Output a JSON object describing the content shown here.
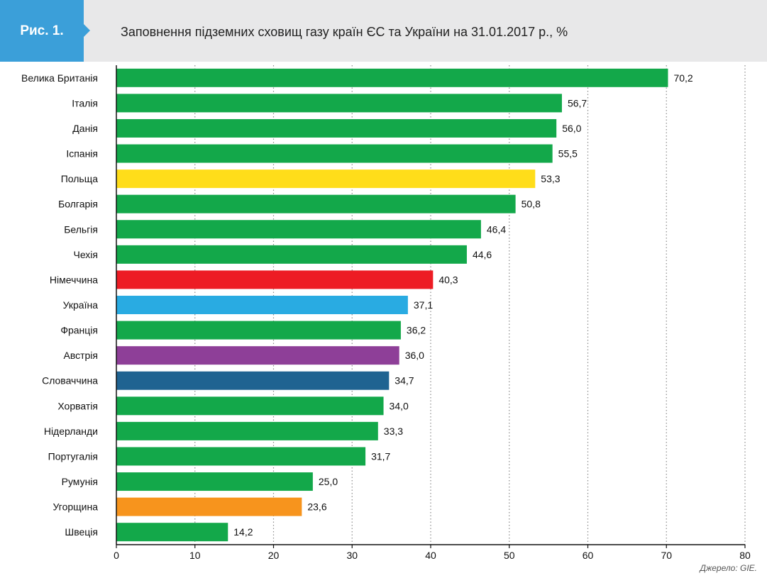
{
  "header": {
    "figure_label": "Рис. 1.",
    "title": "Заповнення підземних сховищ газу країн ЄС та України на 31.01.2017 р., %"
  },
  "source": "Джерело: GIE.",
  "colors": {
    "header_bg": "#e8e8e9",
    "badge": "#3b9fd9",
    "default_bar": "#13a84a"
  },
  "chart_data": {
    "type": "bar",
    "orientation": "horizontal",
    "title": "Заповнення підземних сховищ газу країн ЄС та України на 31.01.2017 р., %",
    "xlim": [
      0,
      80
    ],
    "xticks": [
      0,
      10,
      20,
      30,
      40,
      50,
      60,
      70,
      80
    ],
    "grid": "vertical dotted",
    "categories": [
      "Велика Британія",
      "Італія",
      "Данія",
      "Іспанія",
      "Польща",
      "Болгарія",
      "Бельгія",
      "Чехія",
      "Німеччина",
      "Україна",
      "Франція",
      "Австрія",
      "Словаччина",
      "Хорватія",
      "Нідерланди",
      "Португалія",
      "Румунія",
      "Угорщина",
      "Швеція"
    ],
    "values": [
      70.2,
      56.7,
      56.0,
      55.5,
      53.3,
      50.8,
      46.4,
      44.6,
      40.3,
      37.1,
      36.2,
      36.0,
      34.7,
      34.0,
      33.3,
      31.7,
      25.0,
      23.6,
      14.2
    ],
    "value_labels": [
      "70,2",
      "56,7",
      "56,0",
      "55,5",
      "53,3",
      "50,8",
      "46,4",
      "44,6",
      "40,3",
      "37,1",
      "36,2",
      "36,0",
      "34,7",
      "34,0",
      "33,3",
      "31,7",
      "25,0",
      "23,6",
      "14,2"
    ],
    "bar_colors": [
      "#13a84a",
      "#13a84a",
      "#13a84a",
      "#13a84a",
      "#ffdd1a",
      "#13a84a",
      "#13a84a",
      "#13a84a",
      "#ed1c24",
      "#29abe2",
      "#13a84a",
      "#8e3f98",
      "#1f6391",
      "#13a84a",
      "#13a84a",
      "#13a84a",
      "#13a84a",
      "#f7941d",
      "#13a84a"
    ]
  }
}
